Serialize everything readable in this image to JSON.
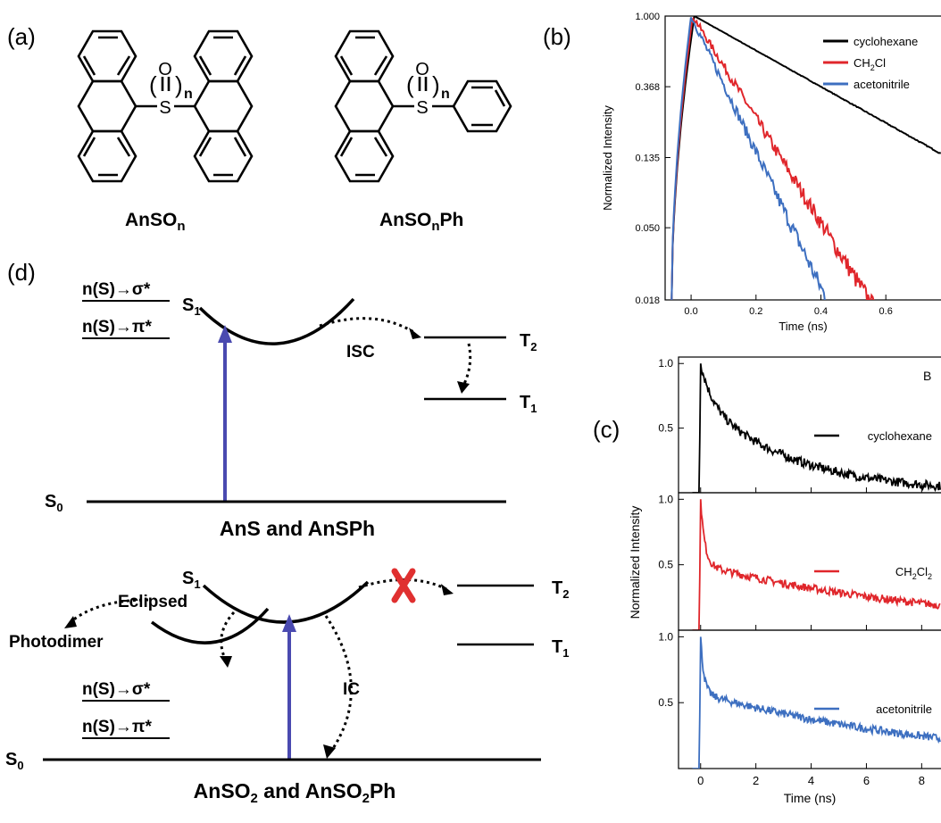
{
  "panel_labels": {
    "a": "(a)",
    "b": "(b)",
    "c": "(c)",
    "d": "(d)"
  },
  "molecules": {
    "left": {
      "name": "AnSO",
      "sub": "n",
      "so_label": "O",
      "s_label": "S",
      "n_label": "n"
    },
    "right": {
      "name": "AnSO",
      "sub": "n",
      "suffix": "Ph",
      "so_label": "O",
      "s_label": "S",
      "n_label": "n"
    }
  },
  "diagram_top": {
    "orbital_1": "n(S)→σ*",
    "orbital_2": "n(S)→π*",
    "s1": "S",
    "s1_sub": "1",
    "s0": "S",
    "s0_sub": "0",
    "t2": "T",
    "t2_sub": "2",
    "t1": "T",
    "t1_sub": "1",
    "isc": "ISC",
    "caption": "AnS and AnSPh"
  },
  "diagram_bottom": {
    "orbital_1": "n(S)→σ*",
    "orbital_2": "n(S)→π*",
    "s1": "S",
    "s1_sub": "1",
    "s0": "S",
    "s0_sub": "0",
    "t2": "T",
    "t2_sub": "2",
    "t1": "T",
    "t1_sub": "1",
    "eclipsed": "Eclipsed",
    "photodimer": "Photodimer",
    "ic": "IC",
    "caption_parts": [
      "AnSO",
      "2",
      " and AnSO",
      "2",
      "Ph"
    ]
  },
  "colors": {
    "black": "#000000",
    "red": "#e0262b",
    "blue": "#3d6fc0",
    "arrow": "#4a4ab0",
    "cross": "#e03030"
  },
  "chart_data": [
    {
      "type": "line",
      "panel": "b",
      "xlabel": "Time (ns)",
      "ylabel": "Normalized Intensity",
      "xlim": [
        -0.08,
        0.77
      ],
      "ylim": [
        0.018,
        1.0
      ],
      "yscale": "log",
      "xticks": [
        "0.0",
        "0.2",
        "0.4",
        "0.6"
      ],
      "xtick_values": [
        0.0,
        0.2,
        0.4,
        0.6
      ],
      "yticks": [
        "1.000",
        "0.368",
        "0.135",
        "0.050",
        "0.018"
      ],
      "ytick_values": [
        1.0,
        0.368,
        0.135,
        0.05,
        0.018
      ],
      "legend_position": "top-right",
      "series": [
        {
          "name": "cyclohexane",
          "name_sub": "",
          "color": "#000000",
          "peak": 0.01,
          "tau": 0.39,
          "noise": 0.004,
          "end": 0.77
        },
        {
          "name": "CH",
          "name_sub": "2",
          "name_tail": "Cl",
          "color": "#e0262b",
          "peak": 0.005,
          "tau": 0.135,
          "noise": 0.09,
          "end": 0.6
        },
        {
          "name": "acetonitrile",
          "name_sub": "",
          "color": "#3d6fc0",
          "peak": 0.0,
          "tau": 0.104,
          "noise": 0.1,
          "end": 0.45
        }
      ]
    },
    {
      "type": "line",
      "panel": "c",
      "xlabel": "Time (ns)",
      "ylabel": "Normalized Intensity",
      "xlim": [
        -0.8,
        8.7
      ],
      "xticks": [
        "0",
        "2",
        "4",
        "6",
        "8"
      ],
      "xtick_values": [
        0,
        2,
        4,
        6,
        8
      ],
      "corner_label": "B",
      "subplots": [
        {
          "name": "cyclohexane",
          "name_sub": "",
          "name_tail": "",
          "color": "#000000",
          "ylim": [
            0.0,
            1.05
          ],
          "yticks": [
            "1.0",
            "0.5"
          ],
          "ytick_values": [
            1.0,
            0.5
          ],
          "a_fast": 0.28,
          "tau_fast": 0.4,
          "a_slow": 0.72,
          "tau_slow": 3.3,
          "offset": 0.0,
          "noise": 0.035
        },
        {
          "name": "CH",
          "name_sub": "2",
          "name_tail": "Cl",
          "name_tail_sub": "2",
          "color": "#e0262b",
          "ylim": [
            0.0,
            1.05
          ],
          "yticks": [
            "1.0",
            "0.5"
          ],
          "ytick_values": [
            1.0,
            0.5
          ],
          "a_fast": 0.5,
          "tau_fast": 0.15,
          "a_slow": 0.5,
          "tau_slow": 9.0,
          "offset": 0.0,
          "noise": 0.03
        },
        {
          "name": "acetonitrile",
          "name_sub": "",
          "name_tail": "",
          "color": "#3d6fc0",
          "ylim": [
            0.0,
            1.05
          ],
          "yticks": [
            "1.0",
            "0.5"
          ],
          "ytick_values": [
            1.0,
            0.5
          ],
          "a_fast": 0.43,
          "tau_fast": 0.12,
          "a_slow": 0.57,
          "tau_slow": 9.5,
          "offset": 0.0,
          "noise": 0.03
        }
      ]
    }
  ]
}
